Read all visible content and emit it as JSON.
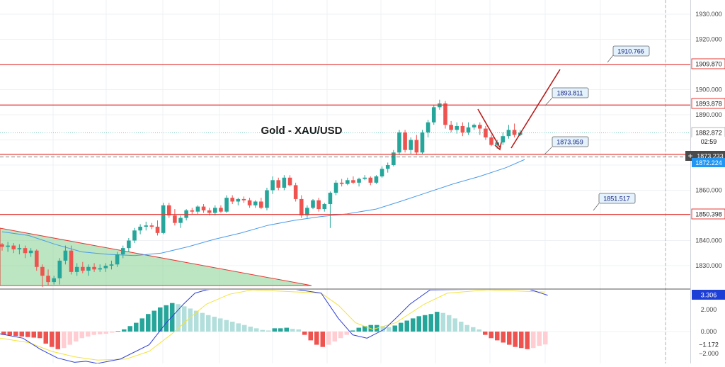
{
  "chart_data": {
    "type": "candlestick",
    "title": "Gold - XAU/USD",
    "price_axis": {
      "range": [
        1816,
        1935
      ],
      "ticks": [
        1830,
        1840,
        1850,
        1860,
        1870,
        1880,
        1890,
        1900,
        1910,
        1920,
        1930
      ],
      "tick_labels": [
        "1830.000",
        "1840.000",
        "1850.000",
        "1860.000",
        "1870.000",
        "1880.000",
        "1890.000",
        "1900.000",
        "1910.000",
        "1920.000",
        "1930.000"
      ]
    },
    "oscillator_axis": {
      "range": [
        -2.9,
        3.5
      ],
      "ticks": [
        2,
        0,
        -2
      ],
      "tick_labels": [
        "2.000",
        "0.000",
        "−2.000"
      ]
    },
    "price_labels": {
      "resistance_1": "1909.870",
      "resistance_2": "1893.878",
      "current": "1882.872",
      "countdown": "02:59",
      "crosshair": "1873.233",
      "moving_average": "1872.224",
      "support": "1850.398",
      "oscillator_main": "3.306",
      "oscillator_hist": "−1.172"
    },
    "callouts": [
      "1910.766",
      "1893.811",
      "1873.959",
      "1851.517"
    ],
    "horizontal_levels": [
      1909.87,
      1893.878,
      1873.233,
      1850.398
    ],
    "candles": [
      [
        1838.5,
        1839.0,
        1836.0,
        1837.5
      ],
      [
        1837.5,
        1839.5,
        1835.5,
        1838.0
      ],
      [
        1838.0,
        1839.0,
        1835.0,
        1836.5
      ],
      [
        1836.5,
        1838.5,
        1834.5,
        1837.0
      ],
      [
        1837.0,
        1838.0,
        1833.0,
        1835.0
      ],
      [
        1835.0,
        1837.0,
        1833.5,
        1836.0
      ],
      [
        1836.0,
        1836.5,
        1828.0,
        1829.5
      ],
      [
        1829.5,
        1830.5,
        1821.5,
        1826.0
      ],
      [
        1826.0,
        1828.5,
        1822.0,
        1823.5
      ],
      [
        1823.5,
        1826.0,
        1822.5,
        1825.0
      ],
      [
        1825.0,
        1833.0,
        1822.5,
        1832.0
      ],
      [
        1832.0,
        1838.0,
        1830.5,
        1836.0
      ],
      [
        1836.0,
        1838.0,
        1826.5,
        1827.5
      ],
      [
        1827.5,
        1831.0,
        1826.0,
        1829.5
      ],
      [
        1829.5,
        1831.5,
        1827.0,
        1828.0
      ],
      [
        1828.0,
        1830.5,
        1826.0,
        1829.5
      ],
      [
        1829.5,
        1831.0,
        1827.5,
        1828.5
      ],
      [
        1828.5,
        1830.5,
        1827.5,
        1829.0
      ],
      [
        1829.0,
        1831.0,
        1827.5,
        1830.0
      ],
      [
        1830.0,
        1832.0,
        1828.5,
        1830.5
      ],
      [
        1830.5,
        1835.5,
        1829.5,
        1834.5
      ],
      [
        1834.5,
        1838.0,
        1833.0,
        1837.0
      ],
      [
        1837.0,
        1841.0,
        1835.5,
        1840.0
      ],
      [
        1840.0,
        1845.0,
        1839.0,
        1844.0
      ],
      [
        1844.0,
        1846.5,
        1842.5,
        1845.5
      ],
      [
        1845.5,
        1847.5,
        1844.0,
        1846.0
      ],
      [
        1846.0,
        1847.0,
        1844.5,
        1845.5
      ],
      [
        1845.5,
        1848.0,
        1842.0,
        1843.0
      ],
      [
        1843.0,
        1855.0,
        1842.5,
        1854.0
      ],
      [
        1854.0,
        1855.0,
        1849.0,
        1850.0
      ],
      [
        1850.0,
        1852.5,
        1846.0,
        1847.0
      ],
      [
        1847.0,
        1850.0,
        1845.0,
        1849.0
      ],
      [
        1849.0,
        1852.5,
        1848.0,
        1852.0
      ],
      [
        1852.0,
        1853.0,
        1850.5,
        1851.5
      ],
      [
        1851.5,
        1854.0,
        1850.5,
        1853.5
      ],
      [
        1853.5,
        1854.5,
        1851.0,
        1852.0
      ],
      [
        1852.0,
        1853.0,
        1850.0,
        1851.0
      ],
      [
        1851.0,
        1854.0,
        1850.0,
        1853.0
      ],
      [
        1853.0,
        1854.0,
        1851.0,
        1851.5
      ],
      [
        1851.5,
        1858.0,
        1851.0,
        1857.0
      ],
      [
        1857.0,
        1858.0,
        1854.5,
        1855.5
      ],
      [
        1855.5,
        1857.0,
        1854.0,
        1856.5
      ],
      [
        1856.5,
        1857.5,
        1855.0,
        1856.0
      ],
      [
        1856.0,
        1857.0,
        1853.0,
        1854.0
      ],
      [
        1854.0,
        1856.0,
        1853.0,
        1855.5
      ],
      [
        1855.5,
        1857.0,
        1852.5,
        1853.0
      ],
      [
        1853.0,
        1861.0,
        1852.0,
        1860.0
      ],
      [
        1860.0,
        1865.5,
        1858.5,
        1864.0
      ],
      [
        1864.0,
        1865.0,
        1860.0,
        1861.0
      ],
      [
        1861.0,
        1866.0,
        1860.0,
        1865.0
      ],
      [
        1865.0,
        1866.0,
        1861.5,
        1862.0
      ],
      [
        1862.0,
        1863.0,
        1855.5,
        1856.5
      ],
      [
        1856.5,
        1858.0,
        1849.0,
        1850.0
      ],
      [
        1850.0,
        1854.0,
        1849.0,
        1853.0
      ],
      [
        1853.0,
        1856.5,
        1852.5,
        1856.0
      ],
      [
        1856.0,
        1857.0,
        1851.5,
        1852.5
      ],
      [
        1852.5,
        1855.0,
        1851.5,
        1854.5
      ],
      [
        1854.5,
        1859.5,
        1845.0,
        1859.0
      ],
      [
        1859.0,
        1864.0,
        1858.0,
        1863.0
      ],
      [
        1863.0,
        1864.5,
        1861.5,
        1862.5
      ],
      [
        1862.5,
        1865.0,
        1862.0,
        1864.0
      ],
      [
        1864.0,
        1865.5,
        1862.5,
        1863.0
      ],
      [
        1863.0,
        1865.0,
        1861.5,
        1864.5
      ],
      [
        1864.5,
        1866.0,
        1864.0,
        1865.0
      ],
      [
        1865.0,
        1865.5,
        1862.0,
        1863.0
      ],
      [
        1863.0,
        1866.0,
        1862.5,
        1865.5
      ],
      [
        1865.5,
        1869.5,
        1865.0,
        1868.5
      ],
      [
        1868.5,
        1871.0,
        1867.0,
        1870.0
      ],
      [
        1870.0,
        1876.0,
        1869.5,
        1875.0
      ],
      [
        1875.0,
        1884.0,
        1874.0,
        1883.0
      ],
      [
        1883.0,
        1884.0,
        1875.0,
        1876.0
      ],
      [
        1876.0,
        1881.0,
        1874.5,
        1880.0
      ],
      [
        1880.0,
        1882.0,
        1874.0,
        1875.0
      ],
      [
        1875.0,
        1884.0,
        1874.5,
        1883.0
      ],
      [
        1883.0,
        1888.0,
        1881.0,
        1887.0
      ],
      [
        1887.0,
        1894.0,
        1886.0,
        1893.0
      ],
      [
        1893.0,
        1896.0,
        1892.0,
        1894.5
      ],
      [
        1894.5,
        1895.5,
        1884.5,
        1886.0
      ],
      [
        1886.0,
        1887.5,
        1883.0,
        1884.0
      ],
      [
        1884.0,
        1887.0,
        1882.5,
        1885.5
      ],
      [
        1885.5,
        1887.0,
        1881.5,
        1883.0
      ],
      [
        1883.0,
        1887.0,
        1882.0,
        1885.0
      ],
      [
        1885.0,
        1886.5,
        1884.0,
        1886.0
      ],
      [
        1886.0,
        1887.0,
        1882.0,
        1884.5
      ],
      [
        1884.5,
        1885.5,
        1880.0,
        1881.0
      ],
      [
        1881.0,
        1882.0,
        1877.5,
        1878.0
      ],
      [
        1878.0,
        1880.0,
        1876.5,
        1879.0
      ],
      [
        1879.0,
        1883.0,
        1878.0,
        1881.5
      ],
      [
        1881.5,
        1886.0,
        1880.5,
        1884.0
      ],
      [
        1884.0,
        1886.5,
        1881.0,
        1882.0
      ],
      [
        1882.0,
        1884.0,
        1881.5,
        1882.9
      ]
    ],
    "moving_average": [
      [
        0,
        1843.5
      ],
      [
        10,
        1842.0
      ],
      [
        20,
        1838.5
      ],
      [
        30,
        1835.5
      ],
      [
        40,
        1834.5
      ],
      [
        50,
        1834.0
      ],
      [
        60,
        1835.0
      ],
      [
        70,
        1837.5
      ],
      [
        80,
        1840.5
      ],
      [
        90,
        1843.0
      ],
      [
        100,
        1846.0
      ],
      [
        110,
        1848.0
      ],
      [
        120,
        1849.5
      ],
      [
        130,
        1850.6
      ],
      [
        141,
        1852.5
      ],
      [
        150,
        1855.5
      ],
      [
        160,
        1859.0
      ],
      [
        170,
        1862.5
      ],
      [
        180,
        1865.5
      ],
      [
        190,
        1869.0
      ],
      [
        197,
        1872.224
      ]
    ],
    "histogram": [
      -0.3,
      -0.35,
      -0.4,
      -0.45,
      -0.5,
      -0.55,
      -0.6,
      -1.1,
      -1.4,
      -1.6,
      -1.5,
      -1.2,
      -0.9,
      -0.6,
      -0.45,
      -0.3,
      -0.25,
      -0.2,
      -0.1,
      0.05,
      0.2,
      0.5,
      0.8,
      1.2,
      1.6,
      1.9,
      2.2,
      2.4,
      2.6,
      2.5,
      2.3,
      2.1,
      1.9,
      1.7,
      1.5,
      1.35,
      1.2,
      1.05,
      0.9,
      0.75,
      0.6,
      0.45,
      0.3,
      0.15,
      0.1,
      0.3,
      0.3,
      0.35,
      0.25,
      0.2,
      -0.3,
      -0.8,
      -1.2,
      -1.4,
      -1.2,
      -0.9,
      -0.6,
      -0.3,
      0.1,
      0.35,
      0.5,
      0.6,
      0.6,
      0.5,
      0.4,
      0.55,
      0.8,
      1.0,
      1.2,
      1.4,
      1.5,
      1.6,
      1.8,
      1.7,
      1.5,
      1.2,
      0.9,
      0.6,
      0.4,
      0.2,
      -0.3,
      -0.6,
      -0.8,
      -1.0,
      -1.2,
      -1.4,
      -1.5,
      -1.6,
      -1.5,
      -1.3,
      -1.172
    ],
    "oscillator_blue": [
      [
        0,
        -0.2
      ],
      [
        8,
        -0.6
      ],
      [
        14,
        -1.6
      ],
      [
        20,
        -2.4
      ],
      [
        26,
        -2.8
      ],
      [
        30,
        -2.7
      ],
      [
        34,
        -2.9
      ],
      [
        42,
        -2.5
      ],
      [
        52,
        -1.2
      ],
      [
        58,
        0.8
      ],
      [
        64,
        2.5
      ],
      [
        68,
        3.5
      ],
      [
        72,
        3.8
      ],
      [
        78,
        4.0
      ],
      [
        86,
        4.5
      ],
      [
        112,
        3.5
      ],
      [
        118,
        1.2
      ],
      [
        123,
        -0.3
      ],
      [
        128,
        -0.6
      ],
      [
        134,
        0.2
      ],
      [
        138,
        1.2
      ],
      [
        143,
        2.5
      ],
      [
        150,
        3.8
      ],
      [
        184,
        3.9
      ],
      [
        191,
        3.306
      ]
    ],
    "oscillator_yellow": [
      [
        0,
        -0.6
      ],
      [
        10,
        -1.0
      ],
      [
        18,
        -1.8
      ],
      [
        26,
        -2.3
      ],
      [
        34,
        -2.6
      ],
      [
        44,
        -2.5
      ],
      [
        52,
        -1.8
      ],
      [
        60,
        -0.2
      ],
      [
        66,
        1.2
      ],
      [
        72,
        2.5
      ],
      [
        80,
        3.4
      ],
      [
        88,
        3.8
      ],
      [
        112,
        3.5
      ],
      [
        118,
        2.4
      ],
      [
        124,
        0.8
      ],
      [
        130,
        0.2
      ],
      [
        138,
        0.8
      ],
      [
        148,
        2.5
      ],
      [
        156,
        3.5
      ],
      [
        170,
        3.8
      ],
      [
        190,
        3.6
      ]
    ]
  }
}
